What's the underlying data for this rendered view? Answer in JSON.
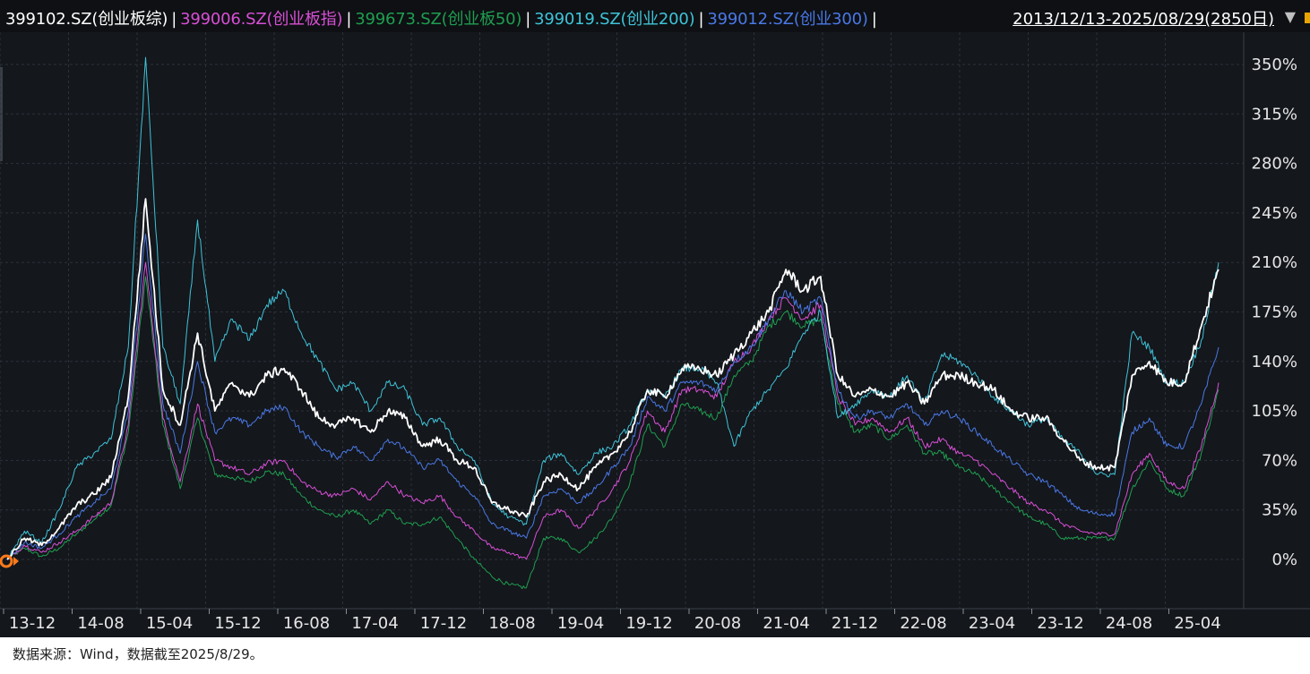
{
  "header": {
    "series_labels": [
      {
        "text": "399102.SZ(创业板综)",
        "color": "#ffffff"
      },
      {
        "text": "399006.SZ(创业板指)",
        "color": "#d84fd6"
      },
      {
        "text": "399673.SZ(创业板50)",
        "color": "#1f9e50"
      },
      {
        "text": "399019.SZ(创业200)",
        "color": "#3fc3d8"
      },
      {
        "text": "399012.SZ(创业300)",
        "color": "#4a78e6"
      }
    ],
    "separator": "|",
    "date_range": "2013/12/13-2025/08/29(2850日)",
    "dropdown_icon": "caret-down-icon"
  },
  "footer": {
    "source_note": "数据来源：Wind，数据截至2025/8/29。"
  },
  "chart_data": {
    "type": "line",
    "x": [
      "2013-12",
      "2014-02",
      "2014-04",
      "2014-06",
      "2014-08",
      "2014-10",
      "2014-12",
      "2015-02",
      "2015-04",
      "2015-06",
      "2015-08",
      "2015-10",
      "2015-12",
      "2016-02",
      "2016-04",
      "2016-06",
      "2016-08",
      "2016-10",
      "2016-12",
      "2017-02",
      "2017-04",
      "2017-06",
      "2017-08",
      "2017-10",
      "2017-12",
      "2018-02",
      "2018-04",
      "2018-06",
      "2018-08",
      "2018-10",
      "2018-12",
      "2019-02",
      "2019-04",
      "2019-06",
      "2019-08",
      "2019-10",
      "2019-12",
      "2020-02",
      "2020-04",
      "2020-06",
      "2020-08",
      "2020-10",
      "2020-12",
      "2021-02",
      "2021-04",
      "2021-06",
      "2021-08",
      "2021-10",
      "2021-12",
      "2022-02",
      "2022-04",
      "2022-06",
      "2022-08",
      "2022-10",
      "2022-12",
      "2023-02",
      "2023-04",
      "2023-06",
      "2023-08",
      "2023-10",
      "2023-12",
      "2024-02",
      "2024-04",
      "2024-06",
      "2024-08",
      "2024-10",
      "2024-12",
      "2025-02",
      "2025-04",
      "2025-06",
      "2025-08"
    ],
    "series": [
      {
        "name": "399102.SZ(创业板综)",
        "color": "#ffffff",
        "width": 1.8,
        "values": [
          0,
          15,
          10,
          22,
          38,
          46,
          58,
          115,
          255,
          120,
          95,
          160,
          105,
          125,
          115,
          130,
          135,
          120,
          100,
          95,
          100,
          90,
          105,
          100,
          80,
          85,
          70,
          65,
          40,
          35,
          30,
          55,
          60,
          50,
          65,
          75,
          90,
          120,
          115,
          135,
          135,
          130,
          145,
          160,
          175,
          205,
          190,
          200,
          130,
          115,
          120,
          115,
          125,
          110,
          130,
          130,
          125,
          120,
          105,
          100,
          100,
          85,
          70,
          65,
          65,
          130,
          140,
          125,
          125,
          165,
          205
        ]
      },
      {
        "name": "399006.SZ(创业板指)",
        "color": "#d84fd6",
        "width": 1.0,
        "values": [
          0,
          10,
          5,
          12,
          20,
          30,
          40,
          95,
          210,
          100,
          55,
          110,
          70,
          65,
          60,
          68,
          70,
          55,
          48,
          45,
          50,
          42,
          55,
          45,
          40,
          45,
          30,
          20,
          8,
          5,
          0,
          30,
          35,
          22,
          35,
          50,
          70,
          105,
          90,
          120,
          120,
          115,
          140,
          150,
          170,
          185,
          170,
          180,
          115,
          95,
          100,
          90,
          100,
          80,
          85,
          75,
          70,
          60,
          50,
          40,
          35,
          25,
          20,
          18,
          18,
          60,
          75,
          55,
          50,
          80,
          125
        ]
      },
      {
        "name": "399673.SZ(创业板50)",
        "color": "#1f9e50",
        "width": 1.0,
        "values": [
          0,
          8,
          2,
          8,
          18,
          28,
          38,
          90,
          200,
          95,
          50,
          100,
          60,
          58,
          55,
          62,
          60,
          45,
          35,
          30,
          35,
          25,
          35,
          25,
          25,
          30,
          15,
          0,
          -12,
          -18,
          -20,
          15,
          15,
          5,
          15,
          30,
          55,
          95,
          80,
          110,
          105,
          100,
          130,
          140,
          165,
          175,
          165,
          170,
          110,
          90,
          95,
          85,
          95,
          75,
          75,
          65,
          60,
          50,
          40,
          30,
          25,
          15,
          15,
          15,
          15,
          50,
          70,
          50,
          45,
          75,
          120
        ]
      },
      {
        "name": "399019.SZ(创业200)",
        "color": "#3fc3d8",
        "width": 1.0,
        "values": [
          0,
          20,
          12,
          35,
          65,
          75,
          85,
          150,
          355,
          150,
          110,
          240,
          140,
          170,
          155,
          180,
          190,
          160,
          140,
          120,
          125,
          105,
          125,
          120,
          95,
          100,
          80,
          70,
          40,
          30,
          25,
          70,
          75,
          60,
          75,
          80,
          95,
          120,
          115,
          135,
          135,
          125,
          80,
          105,
          120,
          135,
          160,
          175,
          100,
          110,
          120,
          115,
          130,
          110,
          145,
          140,
          130,
          115,
          105,
          95,
          100,
          85,
          75,
          60,
          60,
          160,
          150,
          125,
          125,
          155,
          210
        ]
      },
      {
        "name": "399012.SZ(创业300)",
        "color": "#4a78e6",
        "width": 1.0,
        "values": [
          0,
          12,
          8,
          18,
          30,
          40,
          50,
          105,
          230,
          110,
          75,
          140,
          90,
          100,
          95,
          105,
          108,
          90,
          80,
          72,
          80,
          70,
          85,
          78,
          65,
          70,
          55,
          45,
          25,
          20,
          15,
          45,
          50,
          40,
          50,
          65,
          80,
          115,
          105,
          125,
          125,
          120,
          140,
          150,
          170,
          190,
          175,
          185,
          120,
          100,
          105,
          100,
          110,
          95,
          105,
          100,
          90,
          80,
          70,
          60,
          55,
          45,
          35,
          32,
          32,
          90,
          100,
          80,
          80,
          110,
          150
        ]
      }
    ],
    "y_ticks": [
      0,
      35,
      70,
      105,
      140,
      175,
      210,
      245,
      280,
      315,
      350
    ],
    "y_tick_labels": [
      "0%",
      "35%",
      "70%",
      "105%",
      "140%",
      "175%",
      "210%",
      "245%",
      "280%",
      "315%",
      "350%"
    ],
    "x_tick_labels": [
      "13-12",
      "14-08",
      "15-04",
      "15-12",
      "16-08",
      "17-04",
      "17-12",
      "18-08",
      "19-04",
      "19-12",
      "20-08",
      "21-04",
      "21-12",
      "22-08",
      "23-04",
      "23-12",
      "24-08",
      "25-04"
    ],
    "ylim": [
      -40,
      375
    ],
    "grid": true,
    "legend": "top"
  }
}
